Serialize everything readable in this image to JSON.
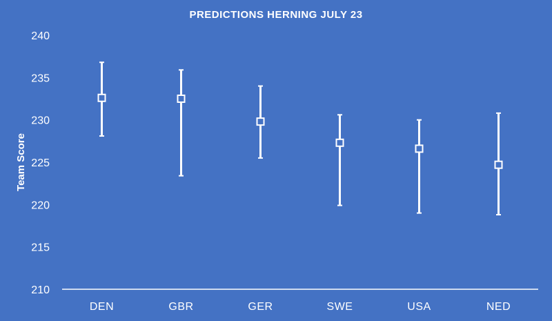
{
  "chart_data": {
    "type": "scatter",
    "title": "PREDICTIONS HERNING JULY 23",
    "xlabel": "",
    "ylabel": "Team Score",
    "ylim": [
      210,
      240
    ],
    "yticks": [
      "210",
      "215",
      "220",
      "225",
      "230",
      "235",
      "240"
    ],
    "categories": [
      "DEN",
      "GBR",
      "GER",
      "SWE",
      "USA",
      "NED"
    ],
    "series": [
      {
        "values": [
          232.6,
          232.5,
          229.8,
          227.3,
          226.6,
          224.7
        ],
        "high": [
          236.8,
          235.9,
          234.0,
          230.6,
          230.0,
          230.8
        ],
        "low": [
          228.1,
          223.4,
          225.5,
          219.9,
          219.0,
          218.8
        ]
      }
    ],
    "grid": false,
    "legend": "none",
    "colors": {
      "background": "#4472c4",
      "foreground": "#ffffff",
      "marker_fill": "#4472c4"
    }
  }
}
